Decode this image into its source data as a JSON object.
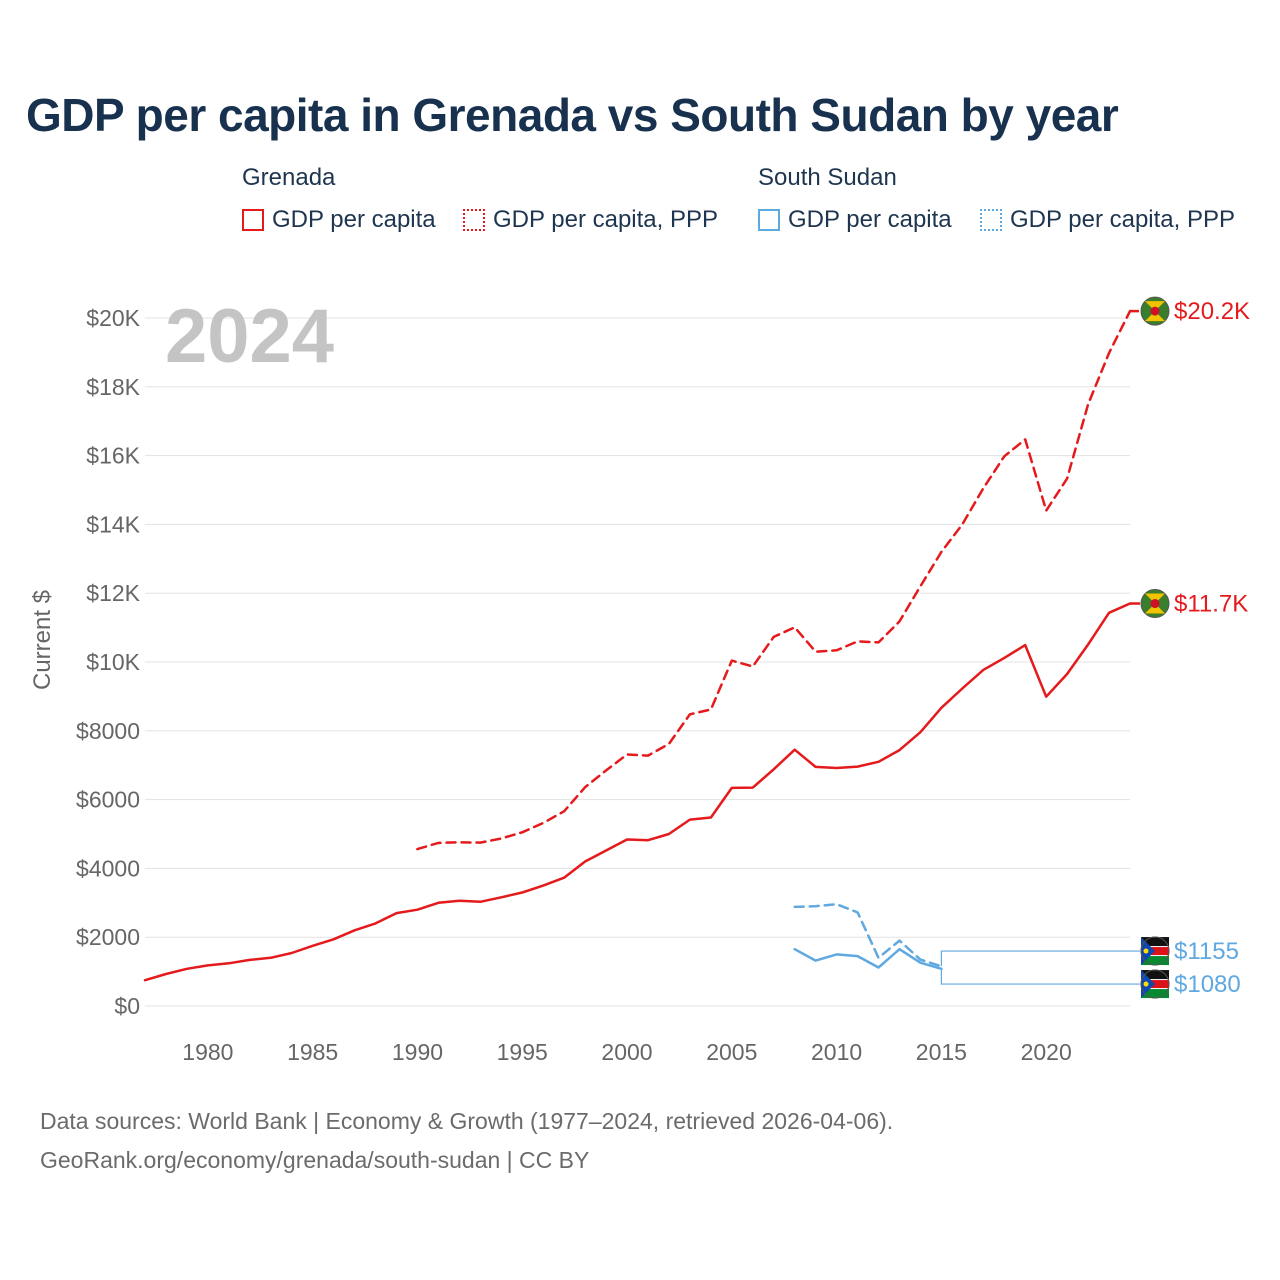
{
  "title": "GDP per capita in Grenada vs South Sudan by year",
  "colors": {
    "grenada": "#e41a1c",
    "south_sudan": "#5fa8e0"
  },
  "legend": {
    "grenada": {
      "title": "Grenada",
      "gdp": "GDP per capita",
      "ppp": "GDP per capita, PPP"
    },
    "south_sudan": {
      "title": "South Sudan",
      "gdp": "GDP per capita",
      "ppp": "GDP per capita, PPP"
    }
  },
  "year_watermark": "2024",
  "footer": {
    "line1": "Data sources: World Bank | Economy & Growth (1977–2024, retrieved 2026-04-06).",
    "line2": "GeoRank.org/economy/grenada/south-sudan | CC BY"
  },
  "chart_data": {
    "type": "line",
    "title": "GDP per capita in Grenada vs South Sudan by year",
    "xlabel": "",
    "ylabel": "Current $",
    "xlim": [
      1977,
      2024
    ],
    "ylim": [
      0,
      20000
    ],
    "grid": true,
    "x_ticks": [
      1980,
      1985,
      1990,
      1995,
      2000,
      2005,
      2010,
      2015,
      2020
    ],
    "x_tick_labels": [
      "1980",
      "1985",
      "1990",
      "1995",
      "2000",
      "2005",
      "2010",
      "2015",
      "2020"
    ],
    "y_ticks": [
      0,
      2000,
      4000,
      6000,
      8000,
      10000,
      12000,
      14000,
      16000,
      18000,
      20000
    ],
    "y_tick_labels": [
      "$0",
      "$2000",
      "$4000",
      "$6000",
      "$8000",
      "$10K",
      "$12K",
      "$14K",
      "$16K",
      "$18K",
      "$20K"
    ],
    "series": [
      {
        "name": "Grenada GDP per capita",
        "country": "grenada",
        "style": "solid",
        "x": [
          1977,
          1978,
          1979,
          1980,
          1981,
          1982,
          1983,
          1984,
          1985,
          1986,
          1987,
          1988,
          1989,
          1990,
          1991,
          1992,
          1993,
          1994,
          1995,
          1996,
          1997,
          1998,
          1999,
          2000,
          2001,
          2002,
          2003,
          2004,
          2005,
          2006,
          2007,
          2008,
          2009,
          2010,
          2011,
          2012,
          2013,
          2014,
          2015,
          2016,
          2017,
          2018,
          2019,
          2020,
          2021,
          2022,
          2023,
          2024
        ],
        "values": [
          750,
          930,
          1080,
          1180,
          1240,
          1340,
          1400,
          1540,
          1750,
          1940,
          2200,
          2400,
          2700,
          2800,
          3000,
          3060,
          3030,
          3160,
          3300,
          3500,
          3730,
          4200,
          4520,
          4840,
          4820,
          5000,
          5420,
          5480,
          6340,
          6350,
          6880,
          7450,
          6950,
          6920,
          6960,
          7100,
          7440,
          7960,
          8670,
          9230,
          9770,
          10120,
          10490,
          8990,
          9650,
          10510,
          11430,
          11700
        ],
        "end_label": "$11.7K"
      },
      {
        "name": "Grenada GDP per capita, PPP",
        "country": "grenada",
        "style": "dashed",
        "x": [
          1990,
          1991,
          1992,
          1993,
          1994,
          1995,
          1996,
          1997,
          1998,
          1999,
          2000,
          2001,
          2002,
          2003,
          2004,
          2005,
          2006,
          2007,
          2008,
          2009,
          2010,
          2011,
          2012,
          2013,
          2014,
          2015,
          2016,
          2017,
          2018,
          2019,
          2020,
          2021,
          2022,
          2023,
          2024
        ],
        "values": [
          4560,
          4740,
          4760,
          4750,
          4870,
          5050,
          5320,
          5660,
          6360,
          6850,
          7310,
          7280,
          7620,
          8480,
          8620,
          10040,
          9870,
          10730,
          11010,
          10300,
          10340,
          10600,
          10570,
          11180,
          12200,
          13200,
          14000,
          15050,
          15980,
          16470,
          14400,
          15330,
          17490,
          18980,
          20200
        ],
        "end_label": "$20.2K"
      },
      {
        "name": "South Sudan GDP per capita",
        "country": "south_sudan",
        "style": "solid",
        "x": [
          2008,
          2009,
          2010,
          2011,
          2012,
          2013,
          2014,
          2015
        ],
        "values": [
          1650,
          1320,
          1500,
          1450,
          1120,
          1650,
          1260,
          1080
        ],
        "end_label": "$1080"
      },
      {
        "name": "South Sudan GDP per capita, PPP",
        "country": "south_sudan",
        "style": "dashed",
        "x": [
          2008,
          2009,
          2010,
          2011,
          2012,
          2013,
          2014,
          2015
        ],
        "values": [
          2880,
          2900,
          2960,
          2720,
          1400,
          1900,
          1350,
          1155
        ],
        "end_label": "$1155"
      }
    ]
  }
}
